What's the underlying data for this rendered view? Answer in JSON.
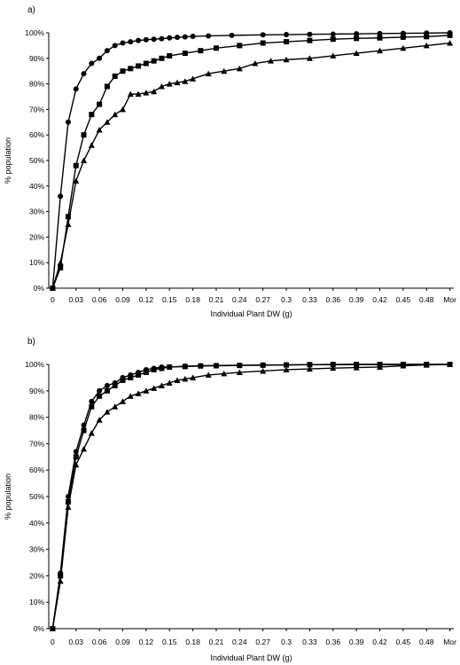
{
  "chart_data": [
    {
      "type": "line",
      "panel_label": "a)",
      "xlabel": "Individual Plant DW (g)",
      "ylabel": "% population",
      "x_tick_labels": [
        "0",
        "0.03",
        "0.06",
        "0.09",
        "0.12",
        "0.15",
        "0.18",
        "0.21",
        "0.24",
        "0.27",
        "0.3",
        "0.33",
        "0.36",
        "0.39",
        "0.42",
        "0.45",
        "0.48",
        "Mor"
      ],
      "x_ticks_value": [
        0,
        0.03,
        0.06,
        0.09,
        0.12,
        0.15,
        0.18,
        0.21,
        0.24,
        0.27,
        0.3,
        0.33,
        0.36,
        0.39,
        0.42,
        0.45,
        0.48,
        0.51
      ],
      "y_tick_labels": [
        "0%",
        "10%",
        "20%",
        "30%",
        "40%",
        "50%",
        "60%",
        "70%",
        "80%",
        "90%",
        "100%"
      ],
      "xlim": [
        -0.005,
        0.515
      ],
      "ylim": [
        0,
        100
      ],
      "grid": false,
      "legend": "none",
      "series": [
        {
          "marker": "circle",
          "points": [
            [
              0,
              0
            ],
            [
              0.01,
              36
            ],
            [
              0.02,
              65
            ],
            [
              0.03,
              78
            ],
            [
              0.04,
              84
            ],
            [
              0.05,
              88
            ],
            [
              0.06,
              90
            ],
            [
              0.07,
              93
            ],
            [
              0.08,
              95
            ],
            [
              0.09,
              96
            ],
            [
              0.1,
              96.5
            ],
            [
              0.11,
              97
            ],
            [
              0.12,
              97.3
            ],
            [
              0.13,
              97.5
            ],
            [
              0.14,
              97.7
            ],
            [
              0.15,
              98
            ],
            [
              0.16,
              98.2
            ],
            [
              0.17,
              98.4
            ],
            [
              0.18,
              98.6
            ],
            [
              0.2,
              98.8
            ],
            [
              0.23,
              99
            ],
            [
              0.27,
              99.2
            ],
            [
              0.3,
              99.3
            ],
            [
              0.33,
              99.4
            ],
            [
              0.36,
              99.5
            ],
            [
              0.39,
              99.6
            ],
            [
              0.42,
              99.7
            ],
            [
              0.45,
              99.8
            ],
            [
              0.48,
              99.9
            ],
            [
              0.51,
              100
            ]
          ]
        },
        {
          "marker": "square",
          "points": [
            [
              0,
              0
            ],
            [
              0.01,
              8
            ],
            [
              0.02,
              28
            ],
            [
              0.03,
              48
            ],
            [
              0.04,
              60
            ],
            [
              0.05,
              68
            ],
            [
              0.06,
              72
            ],
            [
              0.07,
              79
            ],
            [
              0.08,
              83
            ],
            [
              0.09,
              85
            ],
            [
              0.1,
              86
            ],
            [
              0.11,
              87
            ],
            [
              0.12,
              88
            ],
            [
              0.13,
              89
            ],
            [
              0.14,
              90
            ],
            [
              0.15,
              91
            ],
            [
              0.17,
              92
            ],
            [
              0.19,
              93
            ],
            [
              0.21,
              94
            ],
            [
              0.24,
              95
            ],
            [
              0.27,
              96
            ],
            [
              0.3,
              96.5
            ],
            [
              0.33,
              97
            ],
            [
              0.36,
              97.5
            ],
            [
              0.39,
              97.8
            ],
            [
              0.42,
              98
            ],
            [
              0.45,
              98.3
            ],
            [
              0.48,
              98.5
            ],
            [
              0.51,
              99
            ]
          ]
        },
        {
          "marker": "triangle",
          "points": [
            [
              0,
              0
            ],
            [
              0.01,
              10
            ],
            [
              0.02,
              25
            ],
            [
              0.03,
              42
            ],
            [
              0.04,
              50
            ],
            [
              0.05,
              56
            ],
            [
              0.06,
              62
            ],
            [
              0.07,
              65
            ],
            [
              0.08,
              68
            ],
            [
              0.09,
              70
            ],
            [
              0.1,
              76
            ],
            [
              0.11,
              76
            ],
            [
              0.12,
              76.5
            ],
            [
              0.13,
              77
            ],
            [
              0.14,
              79
            ],
            [
              0.15,
              80
            ],
            [
              0.16,
              80.5
            ],
            [
              0.17,
              81
            ],
            [
              0.18,
              82
            ],
            [
              0.2,
              84
            ],
            [
              0.22,
              85
            ],
            [
              0.24,
              86
            ],
            [
              0.26,
              88
            ],
            [
              0.28,
              89
            ],
            [
              0.3,
              89.5
            ],
            [
              0.33,
              90
            ],
            [
              0.36,
              91
            ],
            [
              0.39,
              92
            ],
            [
              0.42,
              93
            ],
            [
              0.45,
              94
            ],
            [
              0.48,
              95
            ],
            [
              0.51,
              96
            ]
          ]
        }
      ]
    },
    {
      "type": "line",
      "panel_label": "b)",
      "xlabel": "Individual Plant DW (g)",
      "ylabel": "% population",
      "x_tick_labels": [
        "0",
        "0.03",
        "0.06",
        "0.09",
        "0.12",
        "0.15",
        "0.18",
        "0.21",
        "0.24",
        "0.27",
        "0.3",
        "0.33",
        "0.36",
        "0.39",
        "0.42",
        "0.45",
        "0.48",
        "Mor"
      ],
      "x_ticks_value": [
        0,
        0.03,
        0.06,
        0.09,
        0.12,
        0.15,
        0.18,
        0.21,
        0.24,
        0.27,
        0.3,
        0.33,
        0.36,
        0.39,
        0.42,
        0.45,
        0.48,
        0.51
      ],
      "y_tick_labels": [
        "0%",
        "10%",
        "20%",
        "30%",
        "40%",
        "50%",
        "60%",
        "70%",
        "80%",
        "90%",
        "100%"
      ],
      "xlim": [
        -0.005,
        0.515
      ],
      "ylim": [
        0,
        100
      ],
      "grid": false,
      "legend": "none",
      "series": [
        {
          "marker": "circle",
          "points": [
            [
              0,
              0
            ],
            [
              0.01,
              21
            ],
            [
              0.02,
              50
            ],
            [
              0.03,
              67
            ],
            [
              0.04,
              77
            ],
            [
              0.05,
              86
            ],
            [
              0.06,
              90
            ],
            [
              0.07,
              92
            ],
            [
              0.08,
              93
            ],
            [
              0.09,
              95
            ],
            [
              0.1,
              96
            ],
            [
              0.11,
              97
            ],
            [
              0.12,
              98
            ],
            [
              0.13,
              98.5
            ],
            [
              0.14,
              99
            ],
            [
              0.15,
              99
            ],
            [
              0.17,
              99.3
            ],
            [
              0.19,
              99.5
            ],
            [
              0.21,
              99.6
            ],
            [
              0.24,
              99.7
            ],
            [
              0.27,
              99.8
            ],
            [
              0.3,
              99.8
            ],
            [
              0.33,
              99.9
            ],
            [
              0.36,
              99.9
            ],
            [
              0.39,
              100
            ],
            [
              0.42,
              100
            ],
            [
              0.45,
              100
            ],
            [
              0.48,
              100
            ],
            [
              0.51,
              100
            ]
          ]
        },
        {
          "marker": "square",
          "points": [
            [
              0,
              0
            ],
            [
              0.01,
              20
            ],
            [
              0.02,
              48
            ],
            [
              0.03,
              65
            ],
            [
              0.04,
              75
            ],
            [
              0.05,
              84
            ],
            [
              0.06,
              88
            ],
            [
              0.07,
              90
            ],
            [
              0.08,
              92
            ],
            [
              0.09,
              94
            ],
            [
              0.1,
              95
            ],
            [
              0.11,
              96
            ],
            [
              0.12,
              97
            ],
            [
              0.13,
              98
            ],
            [
              0.14,
              98.5
            ],
            [
              0.15,
              99
            ],
            [
              0.17,
              99.2
            ],
            [
              0.19,
              99.4
            ],
            [
              0.21,
              99.5
            ],
            [
              0.24,
              99.6
            ],
            [
              0.27,
              99.7
            ],
            [
              0.3,
              99.8
            ],
            [
              0.33,
              99.9
            ],
            [
              0.36,
              100
            ],
            [
              0.39,
              100
            ],
            [
              0.42,
              100
            ],
            [
              0.45,
              100
            ],
            [
              0.48,
              100
            ],
            [
              0.51,
              100
            ]
          ]
        },
        {
          "marker": "triangle",
          "points": [
            [
              0,
              0
            ],
            [
              0.01,
              18
            ],
            [
              0.02,
              46
            ],
            [
              0.03,
              62
            ],
            [
              0.04,
              68
            ],
            [
              0.05,
              74
            ],
            [
              0.06,
              79
            ],
            [
              0.07,
              82
            ],
            [
              0.08,
              84
            ],
            [
              0.09,
              86
            ],
            [
              0.1,
              88
            ],
            [
              0.11,
              89
            ],
            [
              0.12,
              90
            ],
            [
              0.13,
              91
            ],
            [
              0.14,
              92
            ],
            [
              0.15,
              93
            ],
            [
              0.16,
              94
            ],
            [
              0.17,
              94.5
            ],
            [
              0.18,
              95
            ],
            [
              0.2,
              96
            ],
            [
              0.22,
              96.5
            ],
            [
              0.24,
              97
            ],
            [
              0.27,
              97.5
            ],
            [
              0.3,
              98
            ],
            [
              0.33,
              98.3
            ],
            [
              0.36,
              98.6
            ],
            [
              0.39,
              98.8
            ],
            [
              0.42,
              99
            ],
            [
              0.45,
              99.5
            ],
            [
              0.48,
              99.8
            ],
            [
              0.51,
              100
            ]
          ]
        }
      ]
    }
  ]
}
